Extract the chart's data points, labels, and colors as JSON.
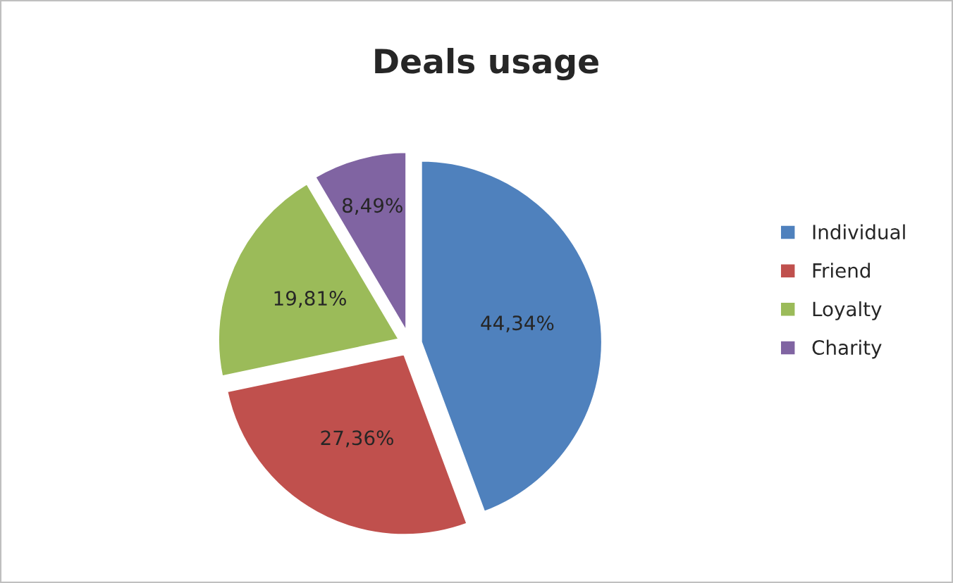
{
  "chart_data": {
    "type": "pie",
    "title": "Deals usage",
    "categories": [
      "Individual",
      "Friend",
      "Loyalty",
      "Charity"
    ],
    "values": [
      44.34,
      27.36,
      19.81,
      8.49
    ],
    "value_labels": [
      "44,34%",
      "27,36%",
      "19,81%",
      "8,49%"
    ],
    "colors": [
      "#4f81bd",
      "#c0504d",
      "#9bbb59",
      "#8064a2"
    ],
    "legend": "right"
  }
}
